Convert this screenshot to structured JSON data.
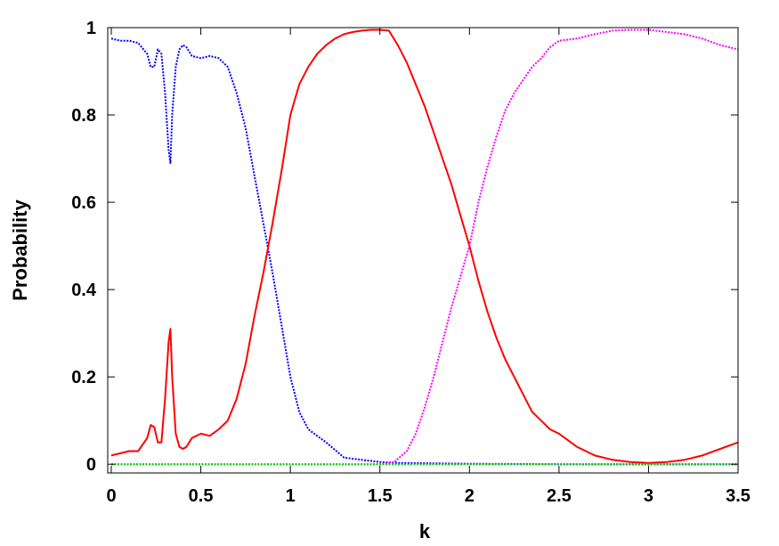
{
  "chart_data": {
    "type": "line",
    "title": "",
    "xlabel": "k",
    "ylabel": "Probability",
    "xlim": [
      -0.02,
      3.5
    ],
    "ylim": [
      -0.02,
      1.0
    ],
    "xticks": [
      0,
      0.5,
      1,
      1.5,
      2,
      2.5,
      3,
      3.5
    ],
    "xtick_labels": [
      "0",
      "0.5",
      "1",
      "1.5",
      "2",
      "2.5",
      "3",
      "3.5"
    ],
    "yticks": [
      0,
      0.2,
      0.4,
      0.6,
      0.8,
      1
    ],
    "ytick_labels": [
      "0",
      "0.2",
      "0.4",
      "0.6",
      "0.8",
      "1"
    ],
    "grid": false,
    "legend": "none",
    "series": [
      {
        "color": "#0000ff",
        "style": "dotted",
        "x": [
          0.0,
          0.05,
          0.1,
          0.15,
          0.2,
          0.22,
          0.24,
          0.26,
          0.28,
          0.3,
          0.32,
          0.33,
          0.34,
          0.36,
          0.38,
          0.4,
          0.42,
          0.45,
          0.5,
          0.55,
          0.6,
          0.65,
          0.7,
          0.75,
          0.8,
          0.85,
          0.9,
          0.95,
          1.0,
          1.05,
          1.1,
          1.2,
          1.3,
          1.4,
          1.5,
          1.6,
          1.8,
          2.0,
          2.5,
          3.0,
          3.5
        ],
        "y": [
          0.975,
          0.97,
          0.97,
          0.965,
          0.94,
          0.91,
          0.91,
          0.95,
          0.94,
          0.85,
          0.72,
          0.69,
          0.8,
          0.91,
          0.95,
          0.96,
          0.955,
          0.935,
          0.93,
          0.935,
          0.93,
          0.91,
          0.85,
          0.77,
          0.66,
          0.55,
          0.44,
          0.32,
          0.2,
          0.12,
          0.08,
          0.05,
          0.015,
          0.01,
          0.005,
          0.003,
          0.002,
          0.001,
          0.0,
          0.0,
          0.0
        ]
      },
      {
        "color": "#ff0000",
        "style": "solid",
        "x": [
          0.0,
          0.05,
          0.1,
          0.15,
          0.2,
          0.22,
          0.24,
          0.26,
          0.28,
          0.3,
          0.32,
          0.33,
          0.34,
          0.36,
          0.38,
          0.4,
          0.42,
          0.45,
          0.5,
          0.55,
          0.6,
          0.65,
          0.7,
          0.75,
          0.8,
          0.85,
          0.9,
          0.95,
          1.0,
          1.05,
          1.1,
          1.15,
          1.2,
          1.25,
          1.3,
          1.35,
          1.4,
          1.45,
          1.5,
          1.55,
          1.6,
          1.65,
          1.7,
          1.75,
          1.8,
          1.85,
          1.9,
          1.95,
          2.0,
          2.05,
          2.1,
          2.15,
          2.2,
          2.25,
          2.3,
          2.35,
          2.4,
          2.45,
          2.5,
          2.6,
          2.7,
          2.8,
          2.9,
          3.0,
          3.1,
          3.2,
          3.3,
          3.4,
          3.5
        ],
        "y": [
          0.02,
          0.025,
          0.03,
          0.03,
          0.06,
          0.09,
          0.085,
          0.05,
          0.05,
          0.15,
          0.28,
          0.31,
          0.2,
          0.07,
          0.04,
          0.035,
          0.04,
          0.06,
          0.07,
          0.065,
          0.08,
          0.1,
          0.15,
          0.23,
          0.34,
          0.44,
          0.55,
          0.67,
          0.8,
          0.87,
          0.91,
          0.94,
          0.96,
          0.975,
          0.985,
          0.99,
          0.993,
          0.995,
          0.995,
          0.993,
          0.96,
          0.92,
          0.87,
          0.82,
          0.76,
          0.7,
          0.64,
          0.57,
          0.5,
          0.42,
          0.35,
          0.29,
          0.24,
          0.2,
          0.16,
          0.12,
          0.1,
          0.08,
          0.07,
          0.04,
          0.02,
          0.01,
          0.005,
          0.003,
          0.005,
          0.01,
          0.02,
          0.035,
          0.05
        ]
      },
      {
        "color": "#ff00ff",
        "style": "dotted",
        "x": [
          0.0,
          0.5,
          1.0,
          1.5,
          1.58,
          1.65,
          1.7,
          1.75,
          1.8,
          1.85,
          1.9,
          1.95,
          2.0,
          2.05,
          2.1,
          2.15,
          2.2,
          2.25,
          2.3,
          2.35,
          2.4,
          2.45,
          2.5,
          2.6,
          2.7,
          2.8,
          2.9,
          3.0,
          3.1,
          3.2,
          3.3,
          3.4,
          3.5
        ],
        "y": [
          0.0,
          0.0,
          0.0,
          0.0,
          0.005,
          0.03,
          0.07,
          0.13,
          0.2,
          0.28,
          0.36,
          0.43,
          0.5,
          0.6,
          0.68,
          0.75,
          0.81,
          0.85,
          0.88,
          0.91,
          0.93,
          0.955,
          0.97,
          0.975,
          0.985,
          0.993,
          0.995,
          0.995,
          0.99,
          0.985,
          0.975,
          0.96,
          0.95
        ]
      },
      {
        "color": "#00cc00",
        "style": "dotted",
        "x": [
          0.0,
          0.5,
          1.0,
          1.5,
          2.0,
          2.5,
          3.0,
          3.5
        ],
        "y": [
          0.0,
          0.0,
          0.0,
          0.0,
          0.0,
          0.0,
          0.0,
          0.0
        ]
      }
    ]
  }
}
